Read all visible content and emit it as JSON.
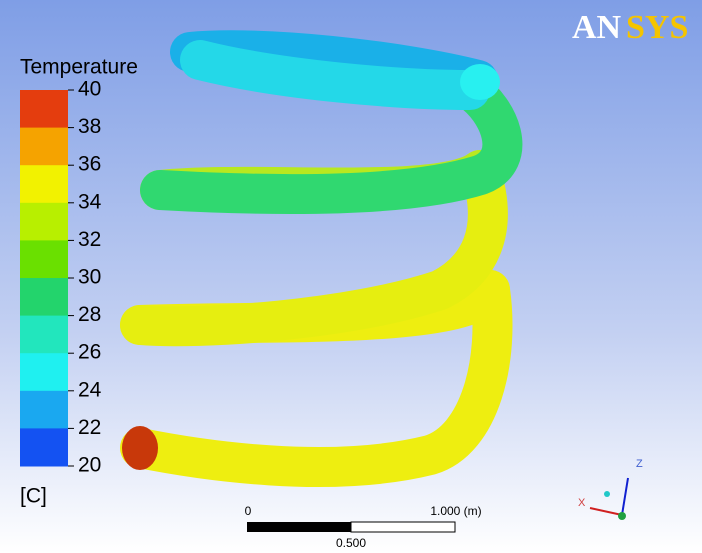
{
  "logo": {
    "first": "AN",
    "second": "SYS"
  },
  "legend": {
    "title": "Temperature",
    "unit": "[C]",
    "ticks": [
      "40",
      "38",
      "36",
      "34",
      "32",
      "30",
      "28",
      "26",
      "24",
      "22",
      "20"
    ],
    "colors": [
      "#e43d0e",
      "#f5a300",
      "#f2f200",
      "#b8ef00",
      "#6ae000",
      "#23d46c",
      "#22e6bd",
      "#1ff0f0",
      "#1aa8f0",
      "#1452f2"
    ]
  },
  "scale_bar": {
    "start": "0",
    "end": "1.000 (m)",
    "middle": "0.500"
  },
  "triad": {
    "z": "Z",
    "x": "X"
  }
}
